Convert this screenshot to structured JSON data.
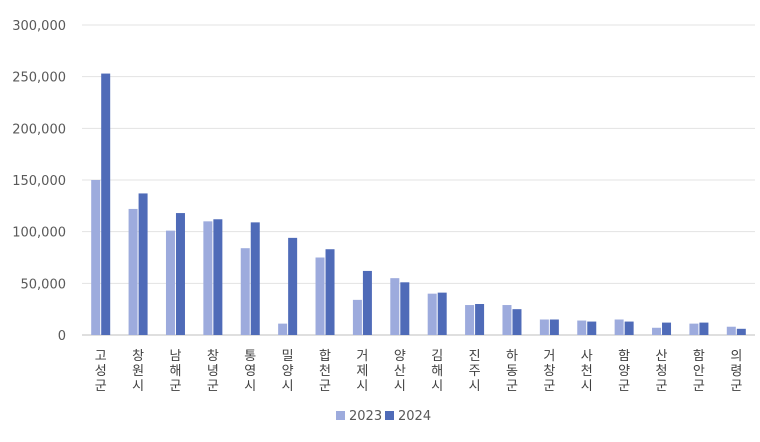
{
  "chart_data": {
    "type": "bar",
    "categories": [
      "고성군",
      "창원시",
      "남해군",
      "창녕군",
      "통영시",
      "밀양시",
      "합천군",
      "거제시",
      "양산시",
      "김해시",
      "진주시",
      "하동군",
      "거창군",
      "사천시",
      "함양군",
      "산청군",
      "함안군",
      "의령군"
    ],
    "series": [
      {
        "name": "2023",
        "color": "#9dabdd",
        "values": [
          150000,
          122000,
          101000,
          110000,
          84000,
          11000,
          75000,
          34000,
          55000,
          40000,
          29000,
          29000,
          15000,
          14000,
          15000,
          7000,
          11000,
          8000
        ]
      },
      {
        "name": "2024",
        "color": "#4f6bb8",
        "values": [
          253000,
          137000,
          118000,
          112000,
          109000,
          94000,
          83000,
          62000,
          51000,
          41000,
          30000,
          25000,
          15000,
          13000,
          13000,
          12000,
          12000,
          6000
        ]
      }
    ],
    "yticks": [
      "0",
      "50,000",
      "100,000",
      "150,000",
      "200,000",
      "250,000",
      "300,000"
    ],
    "ylim": [
      0,
      300000
    ],
    "grid": true,
    "legend": "bottom-center",
    "title": "",
    "xlabel": "",
    "ylabel": ""
  }
}
